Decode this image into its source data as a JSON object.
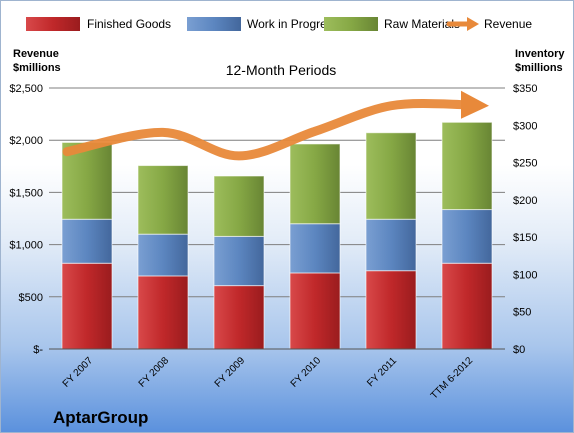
{
  "chart_data": {
    "type": "bar",
    "stacked": true,
    "title": "12-Month Periods",
    "company": "AptarGroup",
    "categories": [
      "FY 2007",
      "FY 2008",
      "FY 2009",
      "FY 2010",
      "FY 2011",
      "TTM 6-2012"
    ],
    "series": [
      {
        "name": "Finished Goods",
        "color": "#c0282a",
        "values": [
          115,
          98,
          85,
          102,
          105,
          115
        ]
      },
      {
        "name": "Work in Progress",
        "color": "#5c86c0",
        "values": [
          59,
          56,
          66,
          66,
          69,
          72
        ]
      },
      {
        "name": "Raw Materials",
        "color": "#86a845",
        "values": [
          103,
          92,
          81,
          107,
          116,
          117
        ]
      }
    ],
    "line_series": {
      "name": "Revenue",
      "color": "#e8893a",
      "values": [
        1890,
        2075,
        1850,
        2085,
        2330,
        2340
      ]
    },
    "left_axis": {
      "title_line1": "Revenue",
      "title_line2": "$millions",
      "min": 0,
      "max": 2500,
      "ticks": [
        "$-",
        "$500",
        "$1,000",
        "$1,500",
        "$2,000",
        "$2,500"
      ]
    },
    "right_axis": {
      "title_line1": "Inventory",
      "title_line2": "$millions",
      "min": 0,
      "max": 350,
      "ticks": [
        "$0",
        "$50",
        "$100",
        "$150",
        "$200",
        "$250",
        "$300",
        "$350"
      ]
    },
    "legend_position": "top",
    "grid": true
  }
}
